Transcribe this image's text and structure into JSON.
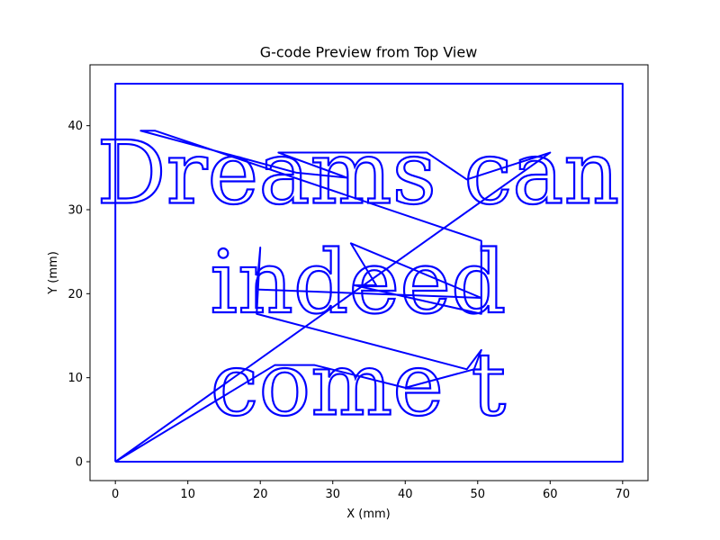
{
  "chart_data": {
    "type": "line",
    "title": "G-code Preview from Top View",
    "xlabel": "X (mm)",
    "ylabel": "Y (mm)",
    "xlim": [
      -3.5,
      73.5
    ],
    "ylim": [
      -2.25,
      47.25
    ],
    "xticks": [
      0,
      10,
      20,
      30,
      40,
      50,
      60,
      70
    ],
    "yticks": [
      0,
      10,
      20,
      30,
      40
    ],
    "grid": false,
    "line_color": "#0000ff",
    "series": [
      {
        "points": [
          [
            0,
            0
          ],
          [
            0,
            45
          ],
          [
            70,
            45
          ],
          [
            70,
            0
          ],
          [
            0,
            0
          ]
        ]
      },
      {
        "points": [
          [
            0,
            0
          ],
          [
            60,
            36.8
          ],
          [
            48.5,
            33.6
          ],
          [
            43,
            36.8
          ],
          [
            22.5,
            36.8
          ],
          [
            32,
            33.8
          ],
          [
            25,
            34.4
          ],
          [
            3.5,
            39.4
          ],
          [
            5.5,
            39.4
          ],
          [
            50.5,
            26.3
          ],
          [
            50.5,
            17.6
          ],
          [
            33,
            21
          ],
          [
            36,
            21
          ],
          [
            32.5,
            26
          ],
          [
            50.5,
            19.5
          ],
          [
            19.5,
            20.5
          ],
          [
            20,
            25.5
          ],
          [
            19.5,
            17.6
          ],
          [
            48.5,
            11
          ],
          [
            50.5,
            13.3
          ],
          [
            49.5,
            11
          ],
          [
            40,
            8.8
          ],
          [
            27.5,
            11.5
          ],
          [
            22,
            11.5
          ],
          [
            0,
            0
          ]
        ]
      }
    ],
    "text_paths": [
      {
        "text": "Dreams can",
        "x": 33.5,
        "y": 30.8
      },
      {
        "text": "indeed",
        "x": 33.5,
        "y": 17.8
      },
      {
        "text": "come t",
        "x": 33.5,
        "y": 5.6
      }
    ]
  }
}
